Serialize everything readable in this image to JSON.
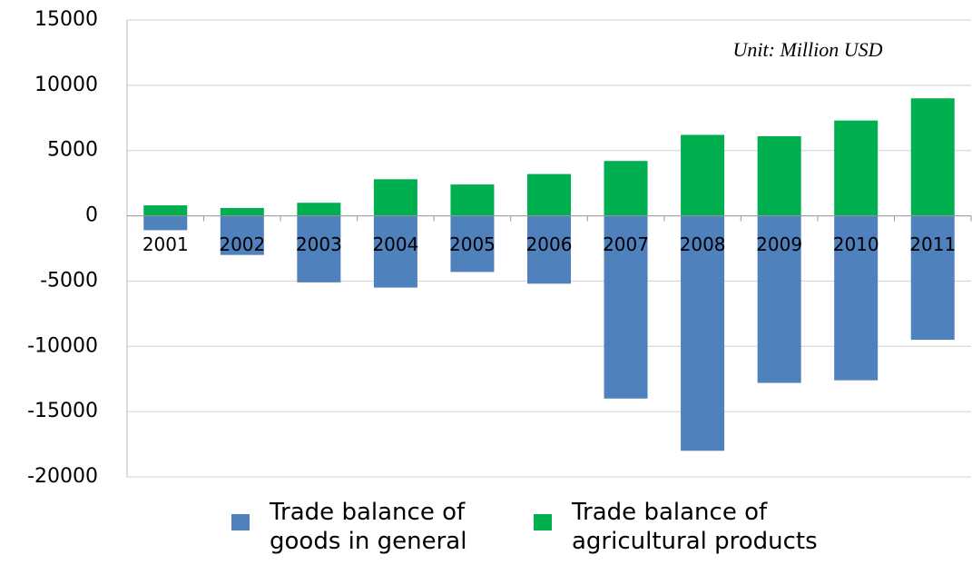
{
  "chart_data": {
    "type": "bar",
    "stacked": true,
    "annotation": "Unit: Million USD",
    "categories": [
      "2001",
      "2002",
      "2003",
      "2004",
      "2005",
      "2006",
      "2007",
      "2008",
      "2009",
      "2010",
      "2011"
    ],
    "series": [
      {
        "name": "Trade balance of goods in general",
        "color": "#4f81bd",
        "values": [
          -1100,
          -3000,
          -5100,
          -5500,
          -4300,
          -5200,
          -14000,
          -18000,
          -12800,
          -12600,
          -9500
        ]
      },
      {
        "name": "Trade balance of agricultural products",
        "color": "#00b050",
        "values": [
          800,
          600,
          1000,
          2800,
          2400,
          3200,
          4200,
          6200,
          6100,
          7300,
          9000
        ]
      }
    ],
    "ylim": [
      -20000,
      15000
    ],
    "yticks": [
      -20000,
      -15000,
      -10000,
      -5000,
      0,
      5000,
      10000,
      15000
    ],
    "grid": true
  }
}
